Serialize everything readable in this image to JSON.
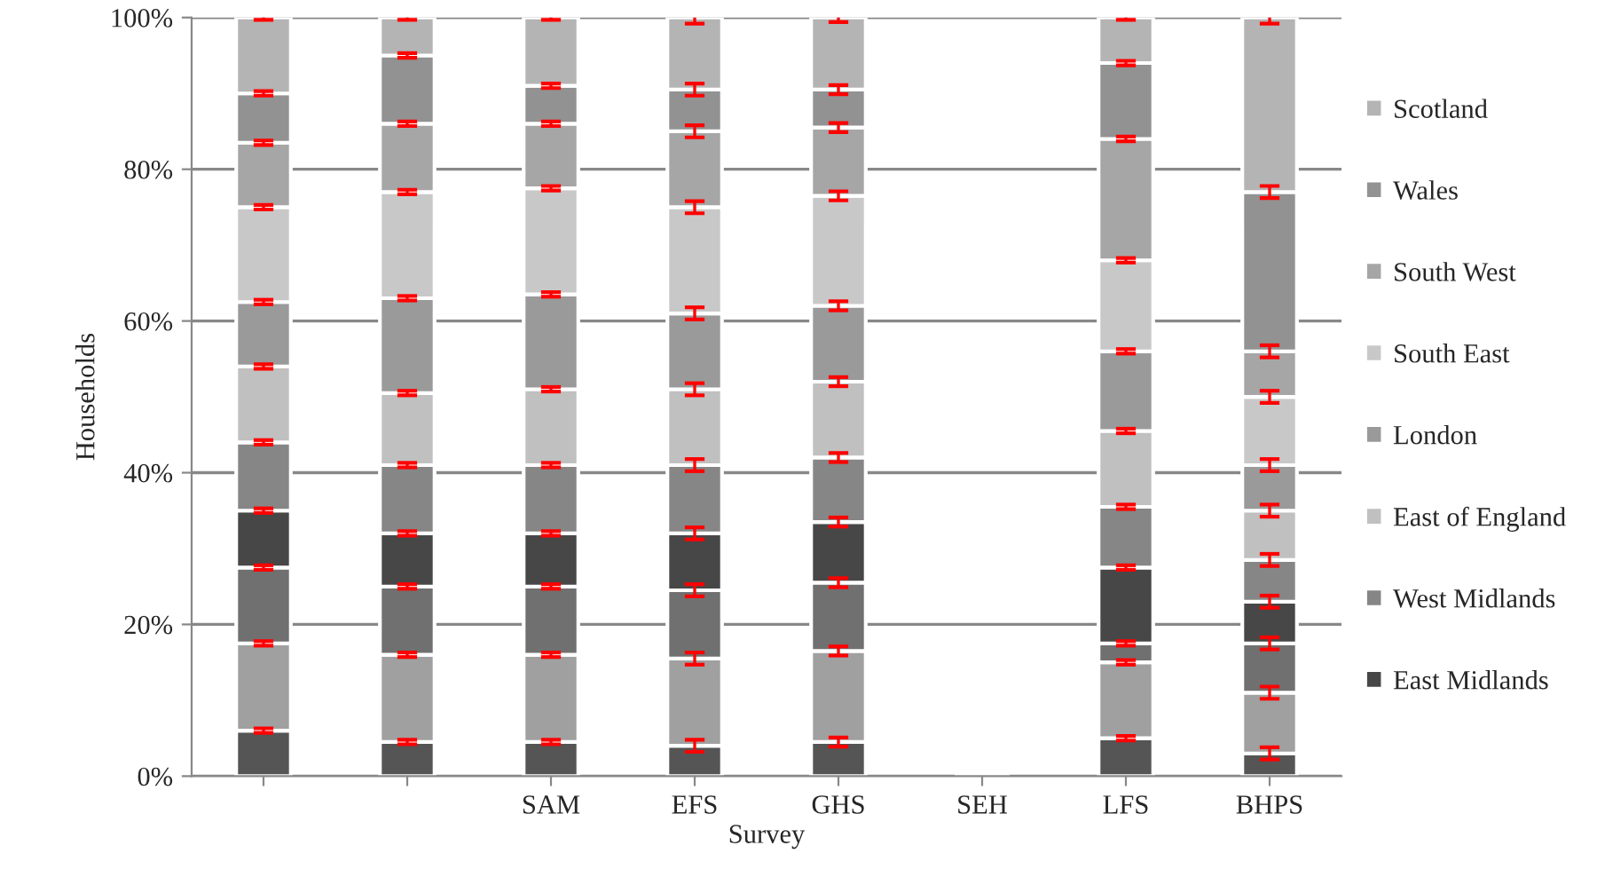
{
  "chart_data": {
    "type": "bar",
    "stacked": true,
    "xlabel": "Survey",
    "ylabel": "Households",
    "categories": [
      null,
      null,
      "SAM",
      "EFS",
      "GHS",
      "SEH",
      "LFS",
      "BHPS"
    ],
    "ylim": [
      0,
      100
    ],
    "yticks": [
      {
        "value": 0,
        "label": "0%"
      },
      {
        "value": 20,
        "label": "20%"
      },
      {
        "value": 40,
        "label": "40%"
      },
      {
        "value": 60,
        "label": "60%"
      },
      {
        "value": 80,
        "label": "80%"
      },
      {
        "value": 100,
        "label": "100%"
      }
    ],
    "grid": "y",
    "legend": "right",
    "series": [
      {
        "color": "#555555",
        "values": [
          6,
          4.5,
          4.5,
          4,
          4.5,
          null,
          5,
          3
        ],
        "errors": [
          0.3,
          0.3,
          0.3,
          0.8,
          0.6,
          null,
          0.3,
          0.8
        ]
      },
      {
        "color": "#a0a0a0",
        "values": [
          11.5,
          11.5,
          11.5,
          11.5,
          12,
          null,
          10,
          8
        ],
        "errors": [
          0.3,
          0.3,
          0.3,
          0.8,
          0.6,
          null,
          0.3,
          0.8
        ]
      },
      {
        "color": "#707070",
        "values": [
          10,
          9,
          9,
          9,
          9,
          null,
          2.5,
          6.5
        ],
        "errors": [
          0.3,
          0.3,
          0.3,
          0.8,
          0.6,
          null,
          0.3,
          0.8
        ]
      },
      {
        "name": "East Midlands",
        "color": "#474747",
        "values": [
          7.5,
          7,
          7,
          7.5,
          8,
          null,
          10,
          5.5
        ],
        "errors": [
          0.3,
          0.3,
          0.3,
          0.8,
          0.6,
          null,
          0.3,
          0.8
        ]
      },
      {
        "name": "West Midlands",
        "color": "#868686",
        "values": [
          9,
          9,
          9,
          9,
          8.5,
          null,
          8,
          5.5
        ],
        "errors": [
          0.3,
          0.3,
          0.3,
          0.8,
          0.6,
          null,
          0.3,
          0.8
        ]
      },
      {
        "name": "East of England",
        "color": "#c0c0c0",
        "values": [
          10,
          9.5,
          10,
          10,
          10,
          null,
          10,
          6.5
        ],
        "errors": [
          0.3,
          0.3,
          0.3,
          0.8,
          0.6,
          null,
          0.3,
          0.8
        ]
      },
      {
        "name": "London",
        "color": "#9a9a9a",
        "values": [
          8.5,
          12.5,
          12.5,
          10,
          10,
          null,
          10.5,
          6
        ],
        "errors": [
          0.3,
          0.3,
          0.3,
          0.8,
          0.6,
          null,
          0.3,
          0.8
        ]
      },
      {
        "name": "South East",
        "color": "#c8c8c8",
        "values": [
          12.5,
          14,
          14,
          14,
          14.5,
          null,
          12,
          9
        ],
        "errors": [
          0.3,
          0.3,
          0.3,
          0.8,
          0.6,
          null,
          0.3,
          0.8
        ]
      },
      {
        "name": "South West",
        "color": "#a6a6a6",
        "values": [
          8.5,
          9,
          8.5,
          10,
          9,
          null,
          16,
          6
        ],
        "errors": [
          0.3,
          0.3,
          0.3,
          0.8,
          0.6,
          null,
          0.3,
          0.8
        ]
      },
      {
        "name": "Wales",
        "color": "#929292",
        "values": [
          6.5,
          9,
          5,
          5.5,
          5,
          null,
          10,
          21
        ],
        "errors": [
          0.3,
          0.3,
          0.3,
          0.8,
          0.6,
          null,
          0.3,
          0.8
        ]
      },
      {
        "name": "Scotland",
        "color": "#b4b4b4",
        "values": [
          10,
          5,
          9,
          9.5,
          9.5,
          null,
          6,
          23
        ],
        "errors": [
          0.3,
          0.3,
          0.3,
          0.8,
          0.6,
          null,
          0.3,
          0.8
        ]
      }
    ]
  }
}
